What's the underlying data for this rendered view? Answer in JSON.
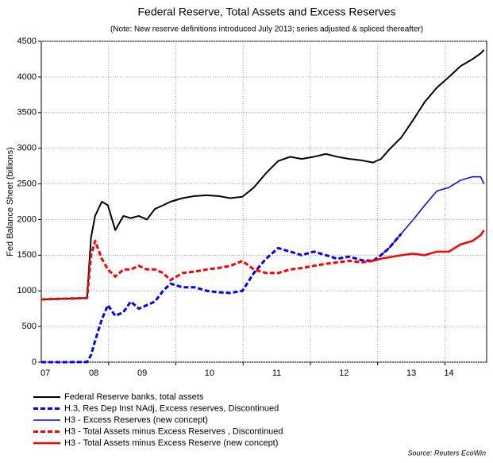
{
  "chart_data": {
    "type": "line",
    "title": "Federal Reserve, Total Assets and Excess Reserves",
    "subtitle": "(Note: New reserve definitions introduced July 2013; series adjusted & spliced thereafter)",
    "y_label": "Fed Balance Sheet (billions)",
    "source": "Source: Reuters EcoWin",
    "xlim": [
      2008,
      2014.62
    ],
    "xticks": [
      {
        "value": 2008.06,
        "label": "07"
      },
      {
        "value": 2008.78,
        "label": "08"
      },
      {
        "value": 2009.5,
        "label": "09"
      },
      {
        "value": 2010.5,
        "label": "10"
      },
      {
        "value": 2011.5,
        "label": "11"
      },
      {
        "value": 2012.5,
        "label": "12"
      },
      {
        "value": 2013.5,
        "label": "13"
      },
      {
        "value": 2014.06,
        "label": "14"
      }
    ],
    "xgrid": [
      2009,
      2010,
      2011,
      2012,
      2013,
      2014
    ],
    "ylim": [
      0,
      4500
    ],
    "yticks": [
      0,
      500,
      1000,
      1500,
      2000,
      2500,
      3000,
      3500,
      4000,
      4500
    ],
    "grid": true,
    "x": [
      2008.0,
      2008.35,
      2008.68,
      2008.74,
      2008.8,
      2008.9,
      2008.99,
      2009.1,
      2009.22,
      2009.33,
      2009.45,
      2009.57,
      2009.69,
      2009.81,
      2009.92,
      2010.1,
      2010.28,
      2010.46,
      2010.63,
      2010.81,
      2010.99,
      2011.16,
      2011.34,
      2011.52,
      2011.7,
      2011.87,
      2012.05,
      2012.23,
      2012.4,
      2012.58,
      2012.76,
      2012.93,
      2013.05,
      2013.17,
      2013.35,
      2013.53,
      2013.7,
      2013.88,
      2014.06,
      2014.23,
      2014.41,
      2014.53,
      2014.58
    ],
    "series": [
      {
        "name": "Federal Reserve banks, total assets",
        "color": "#000000",
        "style": "solid",
        "width": 2,
        "values": [
          880,
          890,
          900,
          1750,
          2050,
          2250,
          2200,
          1850,
          2050,
          2020,
          2050,
          2000,
          2150,
          2200,
          2250,
          2300,
          2330,
          2340,
          2330,
          2300,
          2320,
          2450,
          2650,
          2820,
          2880,
          2850,
          2880,
          2920,
          2880,
          2850,
          2830,
          2800,
          2850,
          2980,
          3150,
          3400,
          3650,
          3850,
          4000,
          4150,
          4250,
          4330,
          4380
        ]
      },
      {
        "name": "H.3, Res Dep Inst NAdj, Excess reserves, Discontinued",
        "color": "#0000ff",
        "style": "dashed",
        "width": 3,
        "values": [
          0,
          0,
          2,
          100,
          300,
          600,
          800,
          650,
          700,
          850,
          750,
          800,
          850,
          1000,
          1100,
          1050,
          1050,
          1000,
          980,
          970,
          1000,
          1250,
          1450,
          1600,
          1550,
          1500,
          1550,
          1500,
          1450,
          1480,
          1430,
          1420,
          1500,
          1600,
          1800,
          null,
          null,
          null,
          null,
          null,
          null,
          null,
          null
        ]
      },
      {
        "name": "H3 - Excess Reserves (new concept)",
        "color": "#0000ff",
        "style": "solid",
        "width": 1.5,
        "values": [
          null,
          null,
          null,
          null,
          null,
          null,
          null,
          null,
          null,
          null,
          null,
          null,
          null,
          null,
          null,
          null,
          null,
          null,
          null,
          null,
          null,
          null,
          null,
          null,
          null,
          null,
          null,
          null,
          null,
          null,
          null,
          null,
          1500,
          1600,
          1800,
          2000,
          2200,
          2400,
          2450,
          2550,
          2600,
          2600,
          2500
        ]
      },
      {
        "name": "H3 - Total Assets minus Excess Reserves , Discontinued",
        "color": "#ff0000",
        "style": "dashed",
        "width": 3,
        "values": [
          880,
          890,
          900,
          1500,
          1700,
          1450,
          1300,
          1200,
          1300,
          1300,
          1350,
          1300,
          1300,
          1250,
          1150,
          1250,
          1270,
          1300,
          1320,
          1350,
          1420,
          1300,
          1250,
          1250,
          1300,
          1320,
          1350,
          1380,
          1400,
          1420,
          1400,
          1420,
          null,
          null,
          null,
          null,
          null,
          null,
          null,
          null,
          null,
          null,
          null
        ]
      },
      {
        "name": "H3 - Total Assets minus Excess Reserve (new concept)",
        "color": "#ff0000",
        "style": "solid",
        "width": 2.5,
        "values": [
          null,
          null,
          null,
          null,
          null,
          null,
          null,
          null,
          null,
          null,
          null,
          null,
          null,
          null,
          null,
          null,
          null,
          null,
          null,
          null,
          null,
          null,
          null,
          null,
          null,
          null,
          null,
          null,
          null,
          null,
          null,
          1420,
          1450,
          1470,
          1500,
          1520,
          1500,
          1550,
          1550,
          1650,
          1700,
          1780,
          1850
        ]
      }
    ]
  }
}
